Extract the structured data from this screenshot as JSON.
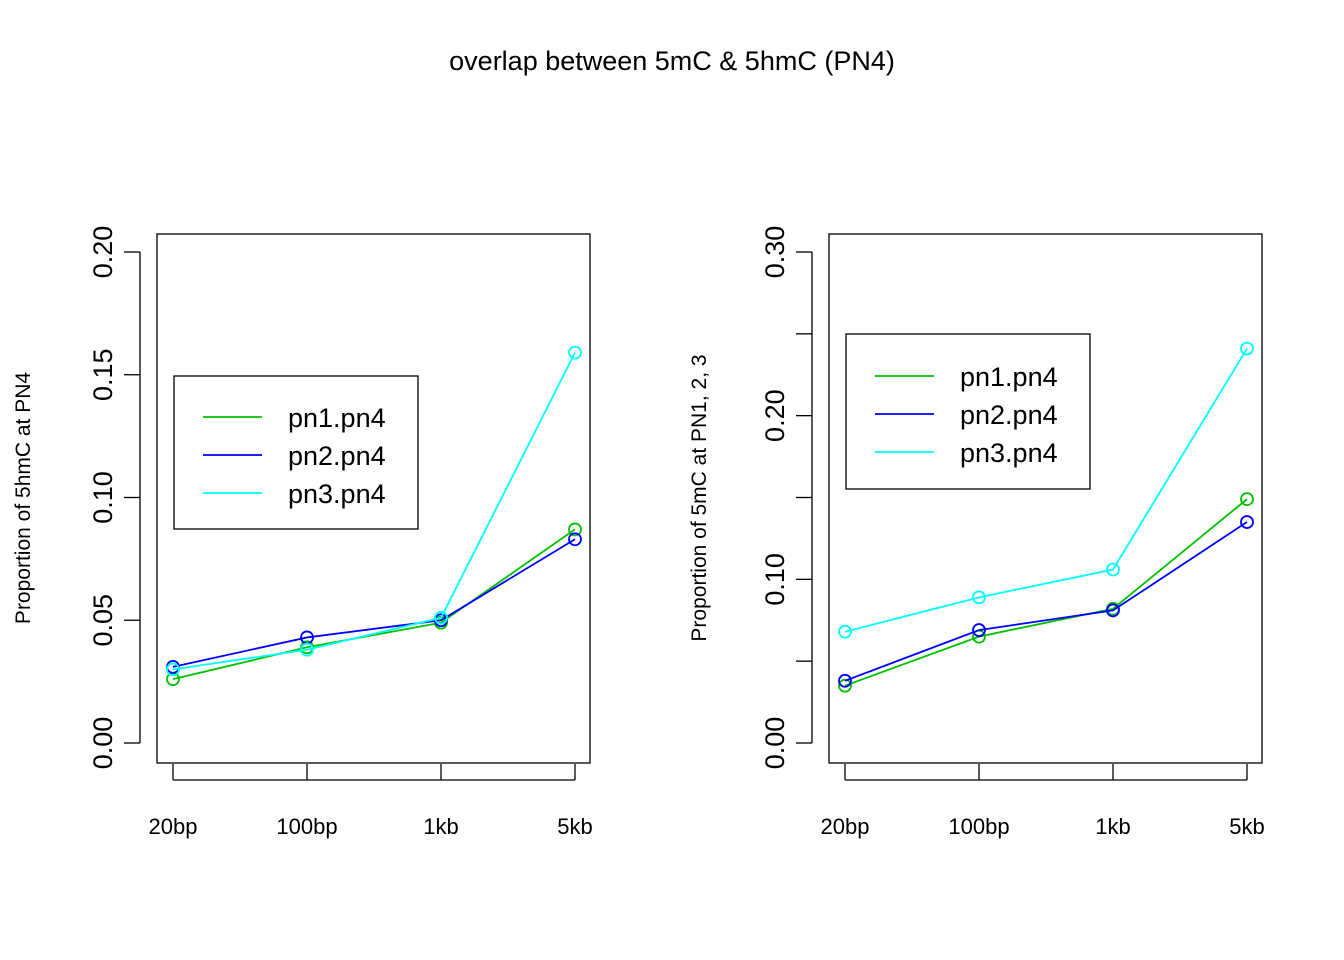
{
  "figure": {
    "title": "overlap between 5mC & 5hmC (PN4)"
  },
  "chart_data": [
    {
      "type": "line",
      "categories": [
        "20bp",
        "100bp",
        "1kb",
        "5kb"
      ],
      "ylabel": "Proportion of 5hmC at PN4",
      "ylim": [
        0,
        0.2
      ],
      "yticks": [
        "0.00",
        "0.05",
        "0.10",
        "0.15",
        "0.20"
      ],
      "markers": "open-circle",
      "legend_position": "left-center",
      "series": [
        {
          "name": "pn1.pn4",
          "color": "#00c000",
          "values": [
            0.026,
            0.039,
            0.049,
            0.087
          ]
        },
        {
          "name": "pn2.pn4",
          "color": "#0000ff",
          "values": [
            0.031,
            0.043,
            0.05,
            0.083
          ]
        },
        {
          "name": "pn3.pn4",
          "color": "#00ffff",
          "values": [
            0.03,
            0.038,
            0.051,
            0.159
          ]
        }
      ]
    },
    {
      "type": "line",
      "categories": [
        "20bp",
        "100bp",
        "1kb",
        "5kb"
      ],
      "ylabel": "Proportion of 5mC at PN1, 2, 3",
      "ylim": [
        0,
        0.3
      ],
      "yticks": [
        "0.00",
        "0.10",
        "0.20",
        "0.30"
      ],
      "minor_yticks": [
        0.05,
        0.15,
        0.25
      ],
      "markers": "open-circle",
      "legend_position": "top-left",
      "series": [
        {
          "name": "pn1.pn4",
          "color": "#00c000",
          "values": [
            0.035,
            0.065,
            0.082,
            0.149
          ]
        },
        {
          "name": "pn2.pn4",
          "color": "#0000ff",
          "values": [
            0.038,
            0.069,
            0.081,
            0.135
          ]
        },
        {
          "name": "pn3.pn4",
          "color": "#00ffff",
          "values": [
            0.068,
            0.089,
            0.106,
            0.241
          ]
        }
      ]
    }
  ]
}
